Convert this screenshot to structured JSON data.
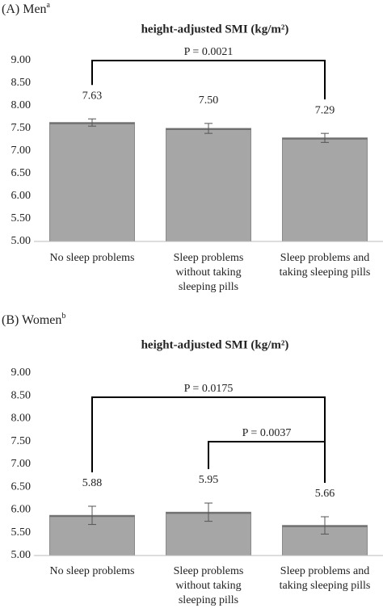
{
  "chart_data": [
    {
      "type": "bar",
      "panel_label": "(A) Men",
      "panel_note": "a",
      "title": "height-adjusted SMI (kg/m²)",
      "categories": [
        "No sleep problems",
        "Sleep problems without taking sleeping pills",
        "Sleep problems and taking sleeping pills"
      ],
      "values": [
        7.63,
        7.5,
        7.29
      ],
      "value_labels": [
        "7.63",
        "7.50",
        "7.29"
      ],
      "errors": [
        0.08,
        0.11,
        0.1
      ],
      "color": "#a6a6a6",
      "ylim": [
        5,
        9
      ],
      "yticks": [
        {
          "value": 5,
          "label": "5.00"
        },
        {
          "value": 5.5,
          "label": "5.50"
        },
        {
          "value": 6,
          "label": "6.00"
        },
        {
          "value": 6.5,
          "label": "6.50"
        },
        {
          "value": 7,
          "label": "7.00"
        },
        {
          "value": 7.5,
          "label": "7.50"
        },
        {
          "value": 8,
          "label": "8.00"
        },
        {
          "value": 8.5,
          "label": "8.50"
        },
        {
          "value": 9,
          "label": "9.00"
        }
      ],
      "grid": false,
      "annotations": [
        {
          "text": "P = 0.0021",
          "from": 0,
          "to": 2
        }
      ]
    },
    {
      "type": "bar",
      "panel_label": "(B) Women",
      "panel_note": "b",
      "title": "height-adjusted SMI (kg/m²)",
      "categories": [
        "No sleep problems",
        "Sleep problems without taking sleeping pills",
        "Sleep problems and taking sleeping pills"
      ],
      "values": [
        5.88,
        5.95,
        5.66
      ],
      "value_labels": [
        "5.88",
        "5.95",
        "5.66"
      ],
      "errors": [
        0.2,
        0.2,
        0.19
      ],
      "color": "#a6a6a6",
      "ylim": [
        5,
        9
      ],
      "yticks": [
        {
          "value": 5,
          "label": "5.00"
        },
        {
          "value": 5.5,
          "label": "5.50"
        },
        {
          "value": 6,
          "label": "6.00"
        },
        {
          "value": 6.5,
          "label": "6.50"
        },
        {
          "value": 7,
          "label": "7.00"
        },
        {
          "value": 7.5,
          "label": "7.50"
        },
        {
          "value": 8,
          "label": "8.00"
        },
        {
          "value": 8.5,
          "label": "8.50"
        },
        {
          "value": 9,
          "label": "9.00"
        }
      ],
      "grid": false,
      "annotations": [
        {
          "text": "P = 0.0175",
          "from": 0,
          "to": 2
        },
        {
          "text": "P = 0.0037",
          "from": 1,
          "to": 2
        }
      ]
    }
  ]
}
